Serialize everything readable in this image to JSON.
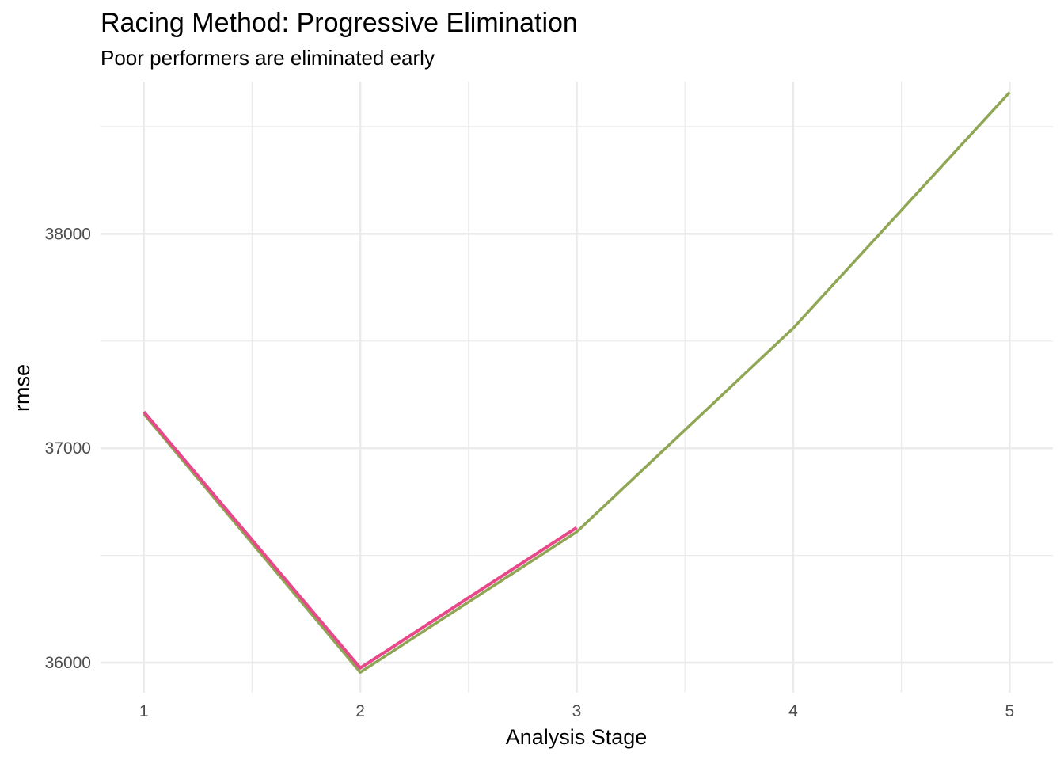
{
  "chart_data": {
    "type": "line",
    "title": "Racing Method: Progressive Elimination",
    "subtitle": "Poor performers are eliminated early",
    "xlabel": "Analysis Stage",
    "ylabel": "rmse",
    "x_ticks": [
      1,
      2,
      3,
      4,
      5
    ],
    "y_ticks": [
      36000,
      37000,
      38000
    ],
    "xlim": [
      0.8,
      5.2
    ],
    "ylim": [
      35860,
      38710
    ],
    "grid": true,
    "legend": "none",
    "series": [
      {
        "color": "#e8488a",
        "line_width": 4,
        "x": [
          1,
          2,
          3
        ],
        "y": [
          37170,
          35975,
          36630
        ]
      },
      {
        "color": "#8fa654",
        "line_width": 3.5,
        "x": [
          1,
          2,
          3,
          4,
          5
        ],
        "y": [
          37160,
          35955,
          36610,
          37560,
          38660
        ]
      }
    ]
  }
}
